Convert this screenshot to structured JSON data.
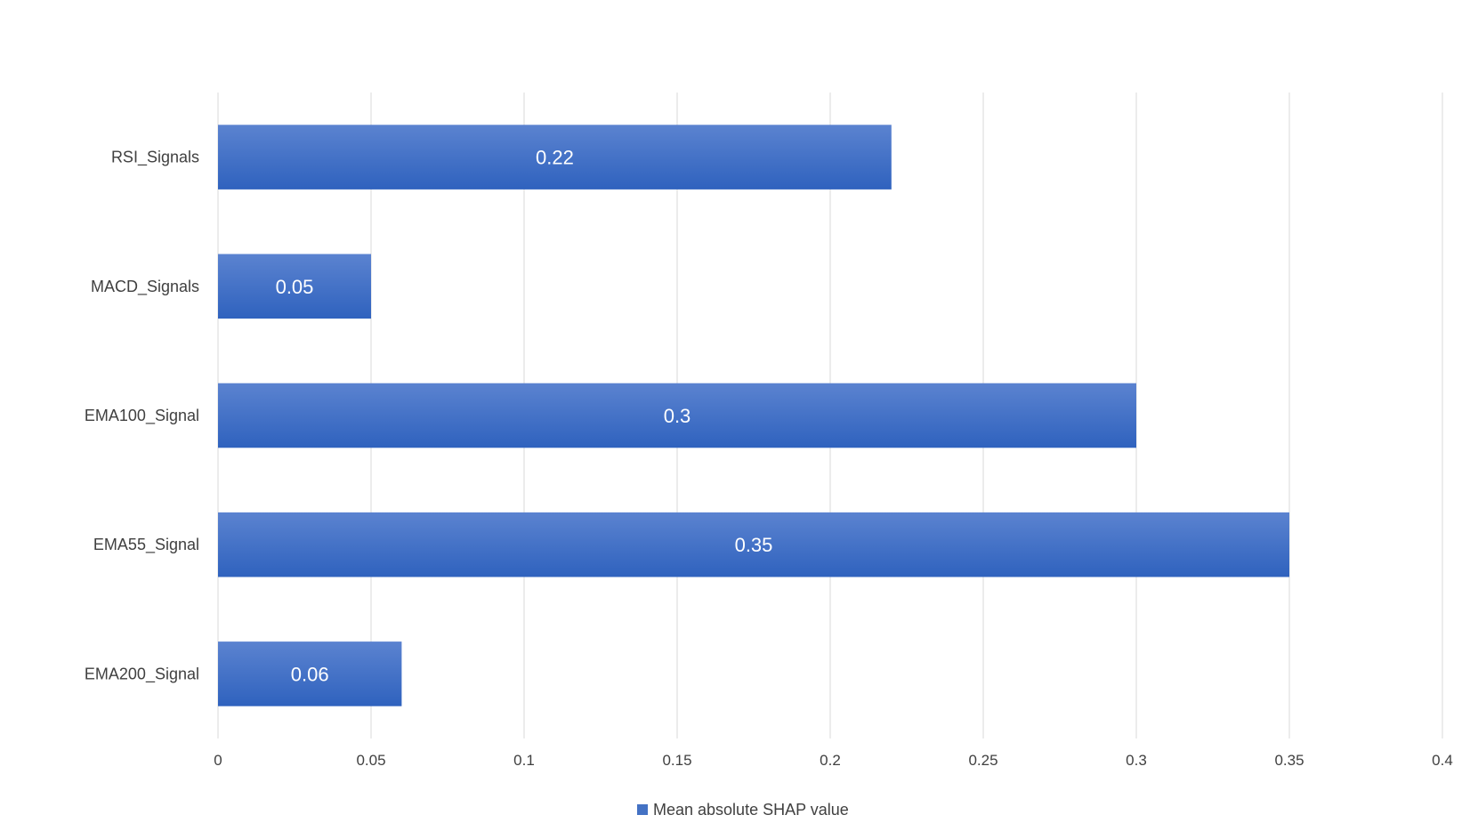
{
  "chart_data": {
    "type": "bar",
    "orientation": "horizontal",
    "categories": [
      "RSI_Signals",
      "MACD_Signals",
      "EMA100_Signal",
      "EMA55_Signal",
      "EMA200_Signal"
    ],
    "series": [
      {
        "name": "Mean absolute SHAP value",
        "values": [
          0.22,
          0.05,
          0.3,
          0.35,
          0.06
        ],
        "color": "#4472c4"
      }
    ],
    "data_labels": [
      "0.22",
      "0.05",
      "0.3",
      "0.35",
      "0.06"
    ],
    "x_ticks": [
      "0",
      "0.05",
      "0.1",
      "0.15",
      "0.2",
      "0.25",
      "0.3",
      "0.35",
      "0.4"
    ],
    "xlim": [
      0,
      0.4
    ],
    "title": "",
    "xlabel": "",
    "ylabel": "",
    "grid": "vertical",
    "legend_position": "bottom"
  }
}
